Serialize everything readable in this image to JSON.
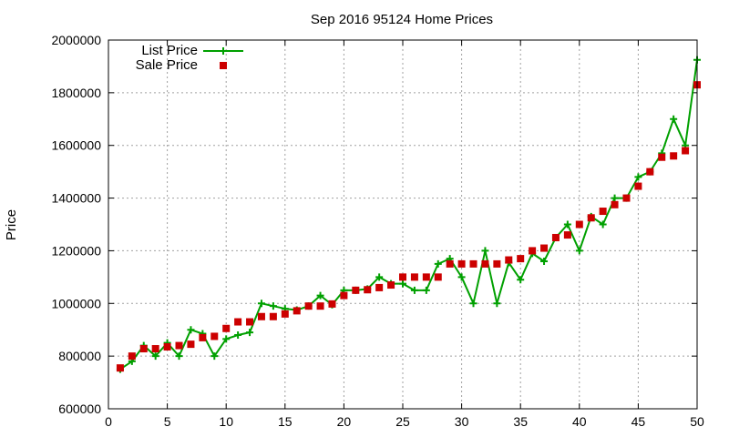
{
  "chart_data": {
    "type": "line",
    "title": "Sep 2016 95124 Home Prices",
    "xlabel": "",
    "ylabel": "Price",
    "xlim": [
      0,
      50
    ],
    "ylim": [
      600000,
      2000000
    ],
    "xticks": [
      0,
      5,
      10,
      15,
      20,
      25,
      30,
      35,
      40,
      45,
      50
    ],
    "yticks": [
      600000,
      800000,
      1000000,
      1200000,
      1400000,
      1600000,
      1800000,
      2000000
    ],
    "grid": true,
    "legend_position": "top-left",
    "series": [
      {
        "name": "List Price",
        "style": "line-markers-plus",
        "color": "#00a000",
        "x": [
          1,
          2,
          3,
          4,
          5,
          6,
          7,
          8,
          9,
          10,
          11,
          12,
          13,
          14,
          15,
          16,
          17,
          18,
          19,
          20,
          21,
          22,
          23,
          24,
          25,
          26,
          27,
          28,
          29,
          30,
          31,
          32,
          33,
          34,
          35,
          36,
          37,
          38,
          39,
          40,
          41,
          42,
          43,
          44,
          45,
          46,
          47,
          48,
          49,
          50
        ],
        "values": [
          750000,
          780000,
          840000,
          800000,
          850000,
          800000,
          900000,
          885000,
          800000,
          865000,
          880000,
          890000,
          1000000,
          990000,
          980000,
          975000,
          990000,
          1030000,
          995000,
          1050000,
          1050000,
          1055000,
          1100000,
          1075000,
          1075000,
          1050000,
          1050000,
          1150000,
          1170000,
          1100000,
          1000000,
          1200000,
          1000000,
          1155000,
          1090000,
          1190000,
          1160000,
          1250000,
          1300000,
          1200000,
          1330000,
          1300000,
          1400000,
          1400000,
          1480000,
          1500000,
          1570000,
          1700000,
          1600000,
          1925000
        ]
      },
      {
        "name": "Sale Price",
        "style": "markers-square",
        "color": "#cc0000",
        "x": [
          1,
          2,
          3,
          4,
          5,
          6,
          7,
          8,
          9,
          10,
          11,
          12,
          13,
          14,
          15,
          16,
          17,
          18,
          19,
          20,
          21,
          22,
          23,
          24,
          25,
          26,
          27,
          28,
          29,
          30,
          31,
          32,
          33,
          34,
          35,
          36,
          37,
          38,
          39,
          40,
          41,
          42,
          43,
          44,
          45,
          46,
          47,
          48,
          49,
          50
        ],
        "values": [
          755000,
          800000,
          828000,
          828000,
          835000,
          840000,
          845000,
          870000,
          875000,
          905000,
          930000,
          930000,
          950000,
          950000,
          960000,
          972000,
          990000,
          990000,
          998000,
          1030000,
          1050000,
          1052000,
          1060000,
          1070000,
          1100000,
          1100000,
          1100000,
          1100000,
          1150000,
          1150000,
          1150000,
          1150000,
          1150000,
          1165000,
          1170000,
          1200000,
          1210000,
          1250000,
          1260000,
          1300000,
          1325000,
          1350000,
          1375000,
          1400000,
          1445000,
          1500000,
          1555000,
          1560000,
          1580000,
          1830000
        ]
      }
    ]
  }
}
